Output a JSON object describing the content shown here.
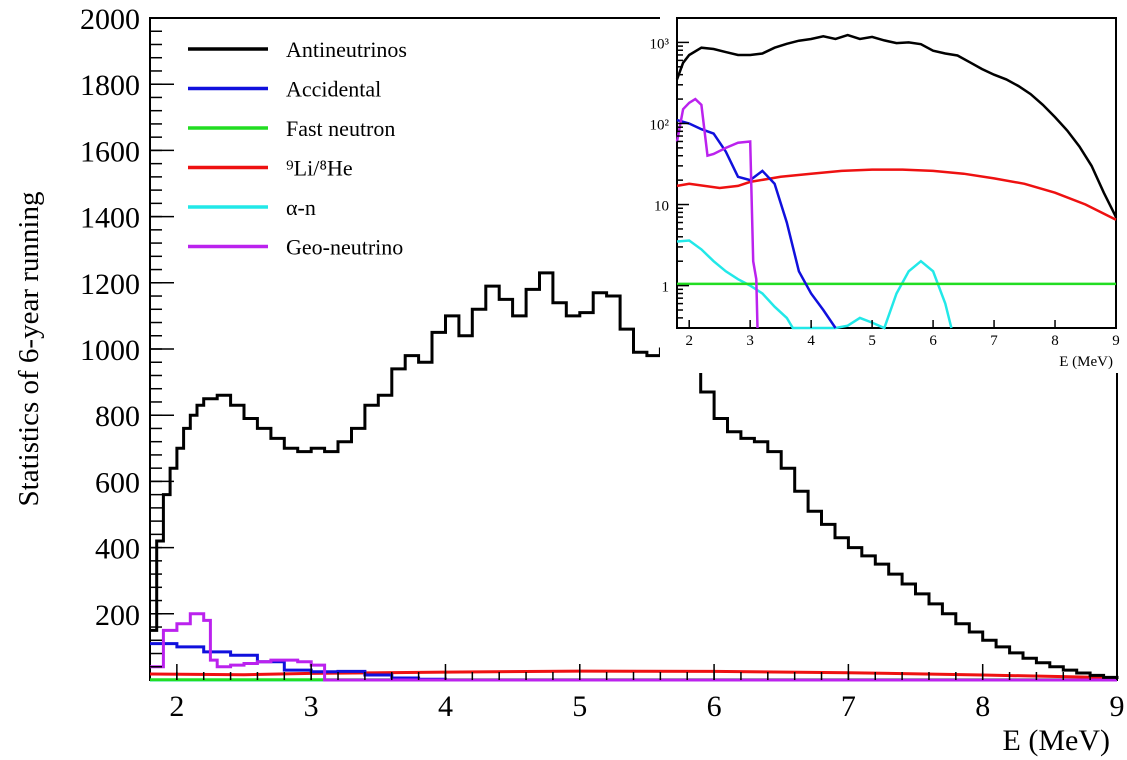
{
  "chart_data": [
    {
      "type": "line",
      "title": "",
      "xlabel": "E (MeV)",
      "ylabel": "Statistics of 6-year running",
      "xlim": [
        1.8,
        9
      ],
      "ylim": [
        0,
        2000
      ],
      "x_ticks": [
        "2",
        "3",
        "4",
        "5",
        "6",
        "7",
        "8",
        "9"
      ],
      "y_ticks": [
        "200",
        "400",
        "600",
        "800",
        "1000",
        "1200",
        "1400",
        "1600",
        "1800",
        "2000"
      ],
      "legend_position": "top-left",
      "grid": false,
      "series": [
        {
          "name": "Antineutrinos",
          "color": "#000000",
          "x": [
            1.8,
            1.85,
            1.9,
            1.95,
            2.0,
            2.05,
            2.1,
            2.15,
            2.2,
            2.3,
            2.4,
            2.5,
            2.6,
            2.7,
            2.8,
            2.9,
            3.0,
            3.1,
            3.2,
            3.3,
            3.4,
            3.5,
            3.6,
            3.7,
            3.8,
            3.9,
            4.0,
            4.1,
            4.2,
            4.3,
            4.4,
            4.5,
            4.6,
            4.7,
            4.8,
            4.9,
            5.0,
            5.1,
            5.2,
            5.3,
            5.4,
            5.5,
            5.6,
            5.7,
            5.8,
            5.9,
            6.0,
            6.1,
            6.2,
            6.3,
            6.4,
            6.5,
            6.6,
            6.7,
            6.8,
            6.9,
            7.0,
            7.1,
            7.2,
            7.3,
            7.4,
            7.5,
            7.6,
            7.7,
            7.8,
            7.9,
            8.0,
            8.1,
            8.2,
            8.3,
            8.4,
            8.5,
            8.6,
            8.7,
            8.8,
            8.9,
            9.0
          ],
          "y": [
            150,
            420,
            560,
            640,
            700,
            760,
            800,
            830,
            850,
            860,
            830,
            790,
            760,
            730,
            700,
            690,
            700,
            690,
            720,
            760,
            830,
            860,
            940,
            980,
            960,
            1050,
            1100,
            1040,
            1120,
            1190,
            1150,
            1100,
            1180,
            1230,
            1140,
            1100,
            1110,
            1170,
            1160,
            1060,
            990,
            980,
            1000,
            1000,
            950,
            870,
            790,
            750,
            730,
            720,
            690,
            640,
            570,
            510,
            470,
            430,
            400,
            375,
            350,
            320,
            290,
            260,
            230,
            200,
            170,
            145,
            120,
            100,
            82,
            66,
            52,
            40,
            30,
            21,
            14,
            8,
            3
          ]
        },
        {
          "name": "Accidental",
          "color": "#1010dd",
          "x": [
            1.8,
            2.0,
            2.2,
            2.4,
            2.6,
            2.8,
            3.0,
            3.2,
            3.4,
            3.6,
            3.8,
            4.0,
            4.5,
            9.0
          ],
          "y": [
            110,
            100,
            85,
            75,
            55,
            30,
            25,
            26,
            15,
            6,
            2,
            0,
            0,
            0
          ]
        },
        {
          "name": "Fast neutron",
          "color": "#22dd22",
          "x": [
            1.8,
            9.0
          ],
          "y": [
            1,
            1
          ]
        },
        {
          "name": "⁹Li/⁸He",
          "color": "#ee1111",
          "x": [
            1.8,
            2.5,
            3.0,
            4.0,
            5.0,
            6.0,
            7.0,
            8.0,
            9.0
          ],
          "y": [
            18,
            16,
            20,
            24,
            27,
            26,
            22,
            15,
            7
          ]
        },
        {
          "name": "α-n",
          "color": "#22e8e8",
          "x": [
            1.8,
            9.0
          ],
          "y": [
            0,
            0
          ]
        },
        {
          "name": "Geo-neutrino",
          "color": "#bb22ee",
          "x": [
            1.8,
            1.9,
            2.0,
            2.1,
            2.2,
            2.25,
            2.3,
            2.4,
            2.5,
            2.6,
            2.7,
            2.8,
            2.9,
            3.0,
            3.1,
            3.2,
            9.0
          ],
          "y": [
            40,
            150,
            170,
            200,
            180,
            60,
            40,
            45,
            50,
            55,
            60,
            60,
            55,
            45,
            0,
            0,
            0
          ]
        }
      ]
    },
    {
      "type": "line",
      "title": "",
      "xlabel": "E (MeV)",
      "ylabel": "",
      "xlim": [
        1.8,
        9
      ],
      "ylim": [
        0.3,
        2000
      ],
      "y_scale": "log",
      "x_ticks": [
        "2",
        "3",
        "4",
        "5",
        "6",
        "7",
        "8",
        "9"
      ],
      "y_ticks": [
        "1",
        "10",
        "10²",
        "10³"
      ],
      "grid": false,
      "series": [
        {
          "color": "#000000",
          "x": [
            1.8,
            1.9,
            2.0,
            2.2,
            2.4,
            2.6,
            2.8,
            3.0,
            3.2,
            3.4,
            3.6,
            3.8,
            4.0,
            4.2,
            4.4,
            4.6,
            4.8,
            5.0,
            5.2,
            5.4,
            5.6,
            5.8,
            6.0,
            6.2,
            6.4,
            6.6,
            6.8,
            7.0,
            7.2,
            7.4,
            7.6,
            7.8,
            8.0,
            8.2,
            8.4,
            8.6,
            8.8,
            9.0
          ],
          "y": [
            350,
            560,
            700,
            860,
            830,
            760,
            700,
            700,
            730,
            860,
            960,
            1050,
            1100,
            1190,
            1100,
            1230,
            1100,
            1170,
            1060,
            980,
            1000,
            950,
            790,
            730,
            690,
            570,
            470,
            400,
            350,
            290,
            230,
            170,
            120,
            82,
            52,
            30,
            14,
            7
          ]
        },
        {
          "color": "#1010dd",
          "x": [
            1.8,
            2.0,
            2.2,
            2.4,
            2.6,
            2.8,
            3.0,
            3.2,
            3.4,
            3.6,
            3.8,
            4.0,
            4.2,
            4.4
          ],
          "y": [
            110,
            100,
            85,
            75,
            45,
            22,
            20,
            26,
            18,
            6,
            1.5,
            0.8,
            0.5,
            0.3
          ]
        },
        {
          "color": "#22dd22",
          "x": [
            1.8,
            9.0
          ],
          "y": [
            1.05,
            1.05
          ]
        },
        {
          "color": "#ee1111",
          "x": [
            1.8,
            2.0,
            2.5,
            2.8,
            3.0,
            3.5,
            4.0,
            4.5,
            5.0,
            5.5,
            6.0,
            6.5,
            7.0,
            7.5,
            8.0,
            8.5,
            9.0
          ],
          "y": [
            17,
            18,
            16,
            17,
            19,
            22,
            24,
            26,
            27,
            27,
            26,
            24,
            21,
            18,
            14,
            10,
            6.5
          ]
        },
        {
          "color": "#22e8e8",
          "x": [
            1.8,
            2.0,
            2.2,
            2.4,
            2.6,
            2.8,
            3.0,
            3.2,
            3.4,
            3.6,
            3.7,
            4.4,
            4.6,
            4.8,
            5.0,
            5.2,
            5.4,
            5.6,
            5.8,
            6.0,
            6.2,
            6.3
          ],
          "y": [
            3.5,
            3.6,
            2.8,
            2.0,
            1.5,
            1.2,
            1.0,
            0.8,
            0.55,
            0.4,
            0.3,
            0.3,
            0.32,
            0.4,
            0.35,
            0.3,
            0.8,
            1.5,
            2.0,
            1.5,
            0.6,
            0.3
          ]
        },
        {
          "color": "#bb22ee",
          "x": [
            1.8,
            1.9,
            2.0,
            2.1,
            2.2,
            2.3,
            2.4,
            2.6,
            2.8,
            3.0,
            3.05,
            3.1,
            3.12
          ],
          "y": [
            60,
            150,
            180,
            200,
            170,
            40,
            42,
            50,
            58,
            60,
            2,
            1.2,
            0.3
          ]
        }
      ]
    }
  ]
}
